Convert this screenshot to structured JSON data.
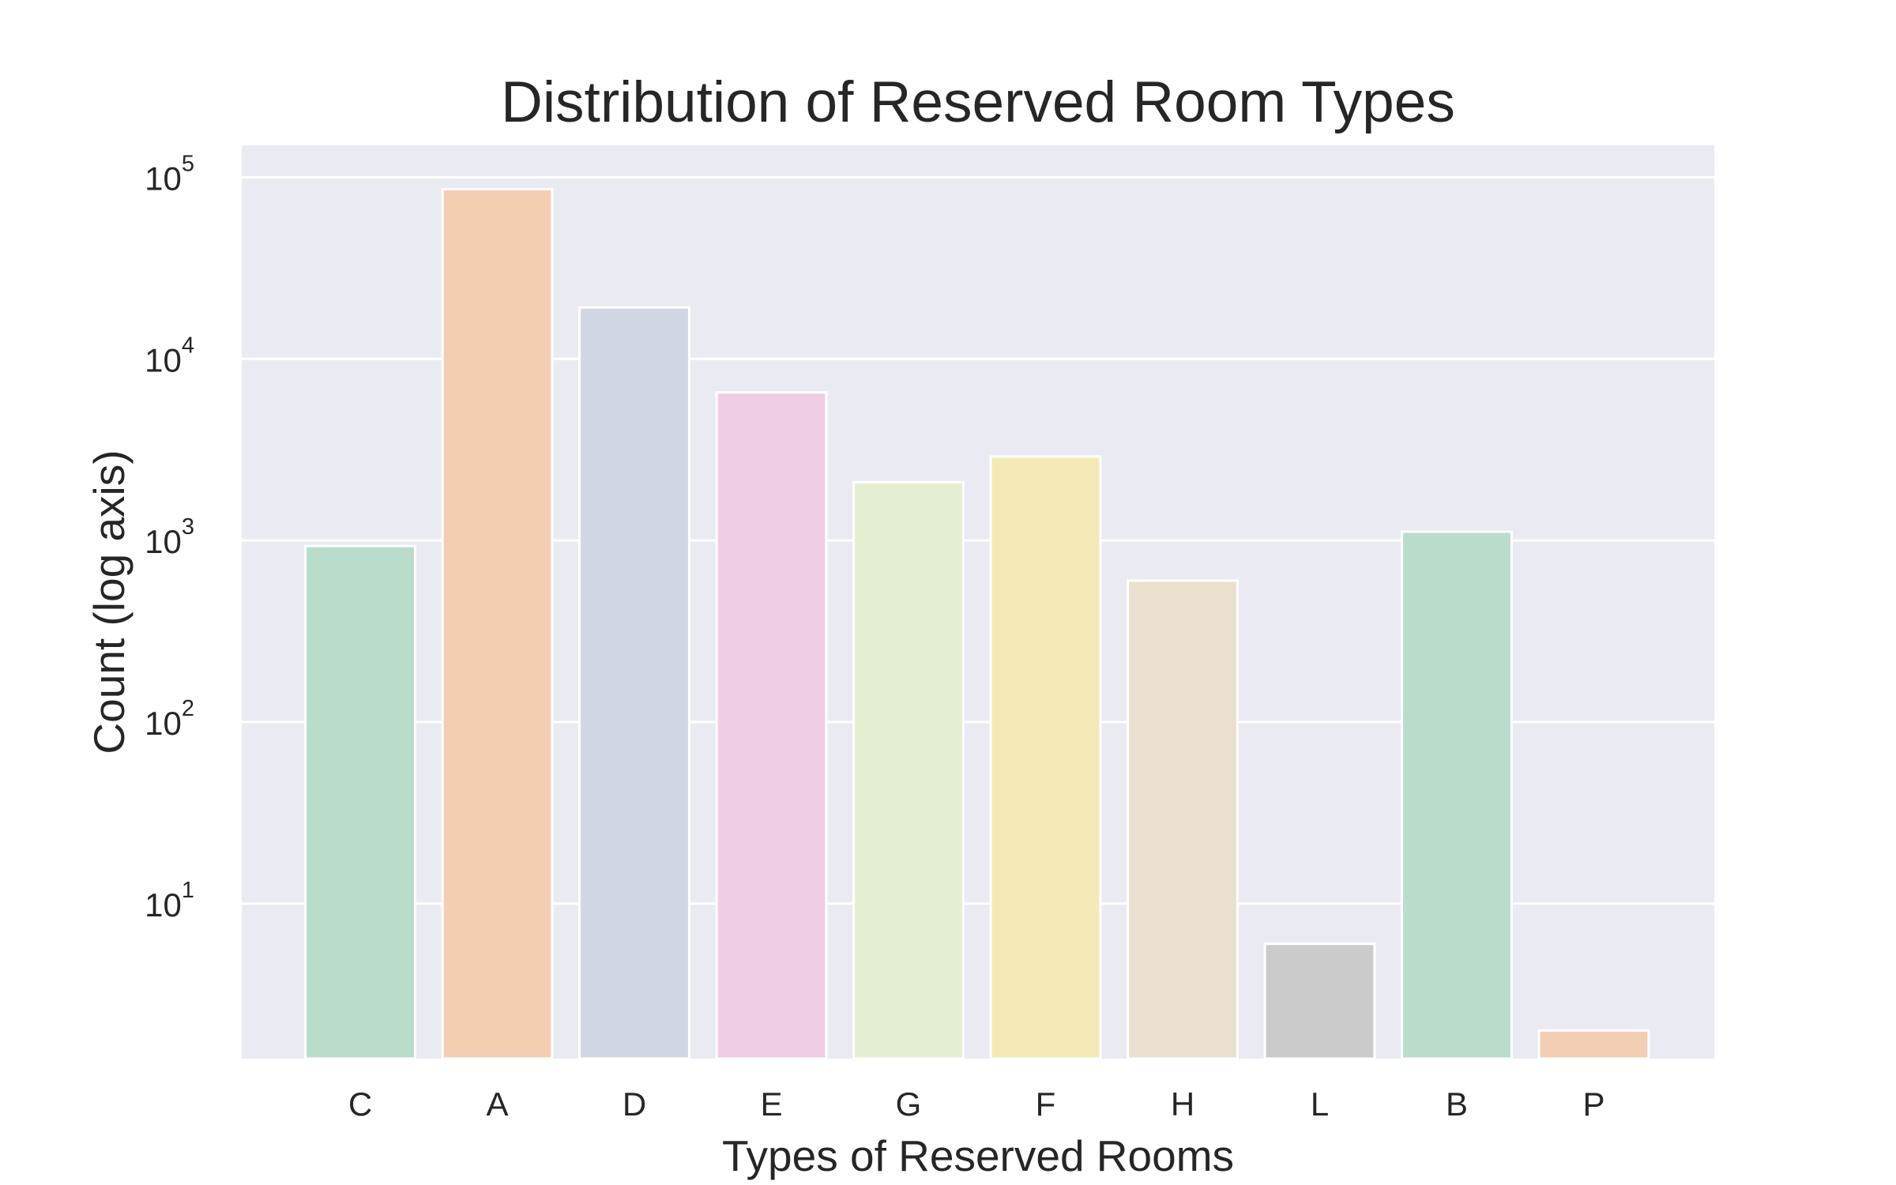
{
  "chart_data": {
    "type": "bar",
    "title": "Distribution of Reserved Room Types",
    "xlabel": "Types of Reserved Rooms",
    "ylabel": "Count (log axis)",
    "yscale": "log",
    "ylim": [
      1.4,
      150000
    ],
    "yticks": [
      {
        "value": 10,
        "base": "10",
        "exp": "1"
      },
      {
        "value": 100,
        "base": "10",
        "exp": "2"
      },
      {
        "value": 1000,
        "base": "10",
        "exp": "3"
      },
      {
        "value": 10000,
        "base": "10",
        "exp": "4"
      },
      {
        "value": 100000,
        "base": "10",
        "exp": "5"
      }
    ],
    "categories": [
      "C",
      "A",
      "D",
      "E",
      "G",
      "F",
      "H",
      "L",
      "B",
      "P"
    ],
    "values": [
      932,
      85994,
      19201,
      6535,
      2094,
      2897,
      601,
      6,
      1118,
      2
    ],
    "colors": [
      "#b9dccb",
      "#f3ceb3",
      "#d0d6e4",
      "#efcde3",
      "#e4efd1",
      "#f5e9b5",
      "#ebdfcf",
      "#cbcbcb",
      "#b9dccb",
      "#f3ceb3"
    ],
    "background": "#eaeaf2",
    "grid": true,
    "legend": "none"
  }
}
